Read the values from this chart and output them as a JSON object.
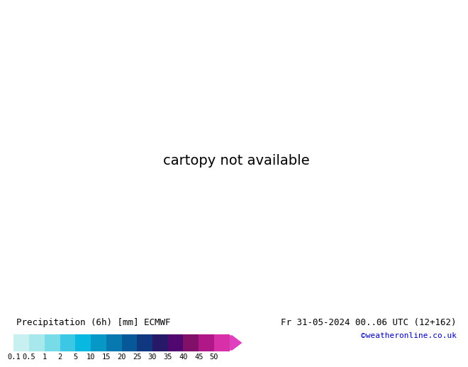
{
  "title_left": "Precipitation (6h) [mm] ECMWF",
  "title_right": "Fr 31-05-2024 00..06 UTC (12+162)",
  "credit": "©weatheronline.co.uk",
  "colorbar_labels": [
    "0.1",
    "0.5",
    "1",
    "2",
    "5",
    "10",
    "15",
    "20",
    "25",
    "30",
    "35",
    "40",
    "45",
    "50"
  ],
  "colorbar_colors": [
    "#c8f0f0",
    "#a8e8ec",
    "#78dce8",
    "#3cc8e4",
    "#08b8e0",
    "#0898c8",
    "#0878b0",
    "#065898",
    "#103880",
    "#281868",
    "#500870",
    "#801068",
    "#b01888",
    "#d830a8"
  ],
  "colorbar_arrow_color": "#e040c0",
  "ocean_color": "#a8d8e8",
  "ocean_dark_color": "#78c0d8",
  "land_color_sa": "#b8d890",
  "land_color_other": "#c8e0a0",
  "label_fontsize": 9,
  "credit_fontsize": 8,
  "cb_label_fontsize": 7.5,
  "bottom_bg": "#ffffff",
  "isobar_blue": "#0000cc",
  "isobar_red": "#cc0000",
  "lon_min": -110,
  "lon_max": 20,
  "lat_min": -60,
  "lat_max": 15
}
